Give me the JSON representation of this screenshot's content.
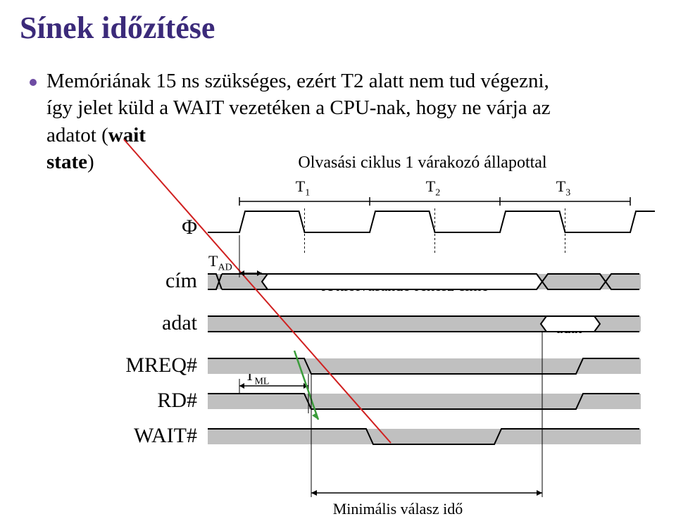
{
  "colors": {
    "title": "#3b2a7a",
    "bullet": "#6e4ca3",
    "text": "#000000",
    "redLine": "#d02020",
    "signalStroke": "#000000",
    "signalFill": "#c0c0c0",
    "arrowGreen": "#3a9c3a",
    "blackArrow": "#000000"
  },
  "title": "Sínek időzítése",
  "bulletLine1": "Memóriának 15 ns szükséges, ezért T2 alatt nem tud végezni,",
  "bulletLine2a": "így jelet küld a WAIT vezetéken a CPU-nak, hogy ne várja az",
  "bulletLine2b": "adatot (",
  "bulletLine2c": "wait",
  "bulletLine3a": "state",
  "bulletLine3b": ")",
  "diagramTitle": "Olvasási ciklus 1 várakozó állapottal",
  "T1": "T",
  "T1sub": "1",
  "T2": "T",
  "T2sub": "2",
  "T3": "T",
  "T3sub": "3",
  "signals": {
    "phi": "Φ",
    "cim": "cím",
    "adat": "adat",
    "mreq": "MREQ#",
    "rd": "RD#",
    "wait": "WAIT#"
  },
  "TAD": "T",
  "TADsub": "AD",
  "TML": "T",
  "TMLsub": "ML",
  "addrLabel": "A kiolvasandó rekesz címe",
  "dataLabel": "adat",
  "bottomLabel": "Minimális válasz idő",
  "geom": {
    "xLeft": 295,
    "c1": 340,
    "c2": 525,
    "c3": 710,
    "c4": 895,
    "phiY": 330,
    "phiH": 30,
    "cimY": 400,
    "cimH": 22,
    "adatY": 460,
    "adatH": 22,
    "mreqY": 520,
    "mreqH": 22,
    "rdY": 570,
    "rdH": 22,
    "waitY": 620,
    "waitH": 22
  }
}
